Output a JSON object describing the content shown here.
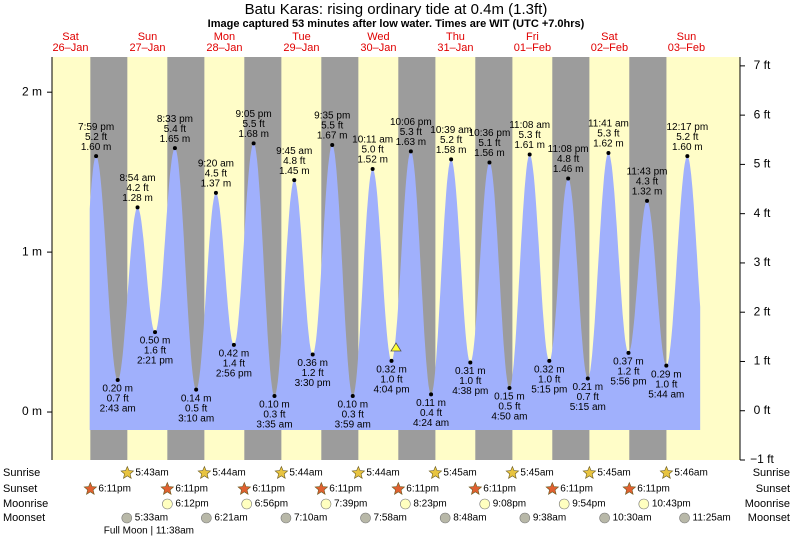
{
  "chart_data": {
    "type": "tide",
    "title": "Batu Karas: rising  ordinary tide at 0.4m (1.3ft)",
    "subtitle": "Image captured 53 minutes after low water. Times are WIT (UTC +7.0hrs)",
    "ylim": [
      -0.3,
      2.22
    ],
    "yticks": [
      {
        "value": 0,
        "label": "0 m"
      },
      {
        "value": 1,
        "label": "1 m"
      },
      {
        "value": 2,
        "label": "2 m"
      }
    ],
    "y2lim": [
      -1.0,
      7.18
    ],
    "y2ticks": [
      {
        "value": -1,
        "label": "−1 ft"
      },
      {
        "value": 0,
        "label": "0 ft"
      },
      {
        "value": 1,
        "label": "1 ft"
      },
      {
        "value": 2,
        "label": "2 ft"
      },
      {
        "value": 3,
        "label": "3 ft"
      },
      {
        "value": 4,
        "label": "4 ft"
      },
      {
        "value": 5,
        "label": "5 ft"
      },
      {
        "value": 6,
        "label": "6 ft"
      },
      {
        "value": 7,
        "label": "7 ft"
      }
    ],
    "fill_color": "#a0b0fc",
    "day_color": "#fffdc8",
    "night_color": "#9c9c9c",
    "row_labels": {
      "sunrise": "Sunrise",
      "sunset": "Sunset",
      "moonrise": "Moonrise",
      "moonset": "Moonset"
    },
    "days": [
      {
        "name": "Sat",
        "date": "26–Jan",
        "sunset": "6:11pm",
        "tides": [
          {
            "time": "7:59 pm",
            "m": 1.6,
            "m_label": "1.60 m",
            "ft_label": "5.2 ft"
          }
        ]
      },
      {
        "name": "Sun",
        "date": "27–Jan",
        "sunrise": "5:43am",
        "sunset": "6:11pm",
        "moonrise": "6:12pm",
        "moonset": "5:33am",
        "moon_phase": "Full Moon | 11:38am",
        "tides": [
          {
            "time": "2:43 am",
            "m": 0.2,
            "m_label": "0.20 m",
            "ft_label": "0.7 ft"
          },
          {
            "time": "8:54 am",
            "m": 1.28,
            "m_label": "1.28 m",
            "ft_label": "4.2 ft"
          },
          {
            "time": "2:21 pm",
            "m": 0.5,
            "m_label": "0.50 m",
            "ft_label": "1.6 ft"
          },
          {
            "time": "8:33 pm",
            "m": 1.65,
            "m_label": "1.65 m",
            "ft_label": "5.4 ft"
          }
        ]
      },
      {
        "name": "Mon",
        "date": "28–Jan",
        "sunrise": "5:44am",
        "sunset": "6:11pm",
        "moonrise": "6:56pm",
        "moonset": "6:21am",
        "tides": [
          {
            "time": "3:10 am",
            "m": 0.14,
            "m_label": "0.14 m",
            "ft_label": "0.5 ft"
          },
          {
            "time": "9:20 am",
            "m": 1.37,
            "m_label": "1.37 m",
            "ft_label": "4.5 ft"
          },
          {
            "time": "2:56 pm",
            "m": 0.42,
            "m_label": "0.42 m",
            "ft_label": "1.4 ft"
          },
          {
            "time": "9:05 pm",
            "m": 1.68,
            "m_label": "1.68 m",
            "ft_label": "5.5 ft"
          }
        ]
      },
      {
        "name": "Tue",
        "date": "29–Jan",
        "sunrise": "5:44am",
        "sunset": "6:11pm",
        "moonrise": "7:39pm",
        "moonset": "7:10am",
        "tides": [
          {
            "time": "3:35 am",
            "m": 0.1,
            "m_label": "0.10 m",
            "ft_label": "0.3 ft"
          },
          {
            "time": "9:45 am",
            "m": 1.45,
            "m_label": "1.45 m",
            "ft_label": "4.8 ft"
          },
          {
            "time": "3:30 pm",
            "m": 0.36,
            "m_label": "0.36 m",
            "ft_label": "1.2 ft"
          },
          {
            "time": "9:35 pm",
            "m": 1.67,
            "m_label": "1.67 m",
            "ft_label": "5.5 ft"
          }
        ]
      },
      {
        "name": "Wed",
        "date": "30–Jan",
        "sunrise": "5:44am",
        "sunset": "6:11pm",
        "moonrise": "8:23pm",
        "moonset": "7:58am",
        "tides": [
          {
            "time": "3:59 am",
            "m": 0.1,
            "m_label": "0.10 m",
            "ft_label": "0.3 ft"
          },
          {
            "time": "10:11 am",
            "m": 1.52,
            "m_label": "1.52 m",
            "ft_label": "5.0 ft"
          },
          {
            "time": "4:04 pm",
            "m": 0.32,
            "m_label": "0.32 m",
            "ft_label": "1.0 ft"
          },
          {
            "time": "10:06 pm",
            "m": 1.63,
            "m_label": "1.63 m",
            "ft_label": "5.3 ft"
          }
        ]
      },
      {
        "name": "Thu",
        "date": "31–Jan",
        "sunrise": "5:45am",
        "sunset": "6:11pm",
        "moonrise": "9:08pm",
        "moonset": "8:48am",
        "tides": [
          {
            "time": "4:24 am",
            "m": 0.11,
            "m_label": "0.11 m",
            "ft_label": "0.4 ft"
          },
          {
            "time": "10:39 am",
            "m": 1.58,
            "m_label": "1.58 m",
            "ft_label": "5.2 ft"
          },
          {
            "time": "4:38 pm",
            "m": 0.31,
            "m_label": "0.31 m",
            "ft_label": "1.0 ft"
          },
          {
            "time": "10:36 pm",
            "m": 1.56,
            "m_label": "1.56 m",
            "ft_label": "5.1 ft"
          }
        ]
      },
      {
        "name": "Fri",
        "date": "01–Feb",
        "sunrise": "5:45am",
        "sunset": "6:11pm",
        "moonrise": "9:54pm",
        "moonset": "9:38am",
        "tides": [
          {
            "time": "4:50 am",
            "m": 0.15,
            "m_label": "0.15 m",
            "ft_label": "0.5 ft"
          },
          {
            "time": "11:08 am",
            "m": 1.61,
            "m_label": "1.61 m",
            "ft_label": "5.3 ft"
          },
          {
            "time": "5:15 pm",
            "m": 0.32,
            "m_label": "0.32 m",
            "ft_label": "1.0 ft"
          },
          {
            "time": "11:08 pm",
            "m": 1.46,
            "m_label": "1.46 m",
            "ft_label": "4.8 ft"
          }
        ]
      },
      {
        "name": "Sat",
        "date": "02–Feb",
        "sunrise": "5:45am",
        "sunset": "6:11pm",
        "moonrise": "10:43pm",
        "moonset": "10:30am",
        "tides": [
          {
            "time": "5:15 am",
            "m": 0.21,
            "m_label": "0.21 m",
            "ft_label": "0.7 ft"
          },
          {
            "time": "11:41 am",
            "m": 1.62,
            "m_label": "1.62 m",
            "ft_label": "5.3 ft"
          },
          {
            "time": "5:56 pm",
            "m": 0.37,
            "m_label": "0.37 m",
            "ft_label": "1.2 ft"
          },
          {
            "time": "11:43 pm",
            "m": 1.32,
            "m_label": "1.32 m",
            "ft_label": "4.3 ft"
          }
        ]
      },
      {
        "name": "Sun",
        "date": "03–Feb",
        "sunrise": "5:46am",
        "moonset": "11:25am",
        "tides": [
          {
            "time": "5:44 am",
            "m": 0.29,
            "m_label": "0.29 m",
            "ft_label": "1.0 ft"
          },
          {
            "time": "12:17 pm",
            "m": 1.6,
            "m_label": "1.60 m",
            "ft_label": "5.2 ft"
          }
        ]
      }
    ]
  }
}
